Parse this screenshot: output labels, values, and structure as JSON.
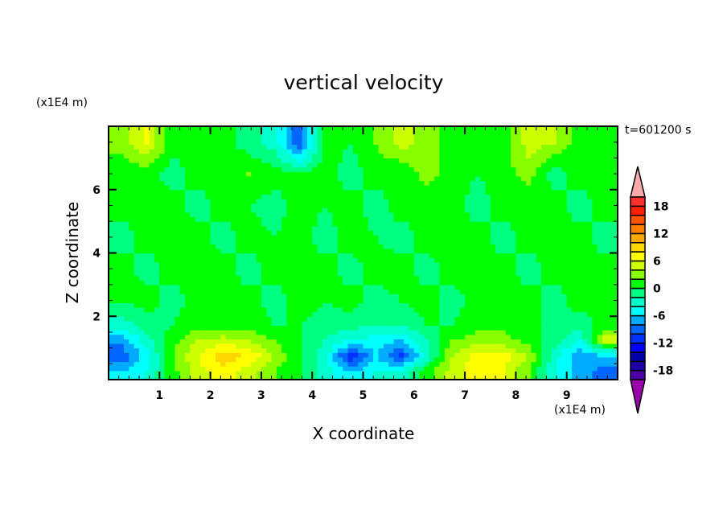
{
  "chart_data": {
    "type": "heatmap",
    "title": "vertical velocity",
    "xlabel": "X coordinate",
    "ylabel": "Z coordinate",
    "x_unit": "(x1E4 m)",
    "y_unit": "(x1E4 m)",
    "annotation": "t=601200 s",
    "xlim": [
      0,
      10
    ],
    "ylim": [
      0,
      8
    ],
    "x_ticks": [
      "1",
      "2",
      "3",
      "4",
      "5",
      "6",
      "7",
      "8",
      "9"
    ],
    "y_ticks": [
      "2",
      "4",
      "6"
    ],
    "x": [
      0.25,
      0.75,
      1.25,
      1.75,
      2.25,
      2.75,
      3.25,
      3.75,
      4.25,
      4.75,
      5.25,
      5.75,
      6.25,
      6.75,
      7.25,
      7.75,
      8.25,
      8.75,
      9.25,
      9.75
    ],
    "z": [
      0.25,
      0.75,
      1.25,
      1.75,
      2.5,
      3.5,
      4.5,
      5.5,
      6.5,
      7.5
    ],
    "values": [
      [
        -6,
        -4,
        1,
        5,
        7,
        5,
        2,
        0,
        -3,
        -6,
        -4,
        -3,
        1,
        5,
        7,
        6,
        2,
        -4,
        -7,
        -9
      ],
      [
        -10,
        -5,
        2,
        6,
        9,
        8,
        4,
        0,
        -3,
        -12,
        -6,
        -11,
        -3,
        4,
        7,
        7,
        4,
        -3,
        -8,
        -6
      ],
      [
        -7,
        -3,
        1,
        4,
        5,
        4,
        2,
        0,
        -2,
        -4,
        -5,
        -6,
        -2,
        2,
        3,
        3,
        1,
        -1,
        -4,
        5
      ],
      [
        -3,
        -1,
        0,
        1,
        1,
        1,
        0,
        0,
        -1,
        -1,
        -2,
        -2,
        0,
        0,
        1,
        1,
        0,
        0,
        -1,
        1
      ],
      [
        0,
        1,
        -1,
        1,
        0,
        1,
        -1,
        1,
        0,
        1,
        -1,
        0,
        1,
        -1,
        1,
        0,
        1,
        -1,
        1,
        0
      ],
      [
        1,
        -1,
        1,
        0,
        1,
        -1,
        1,
        0,
        1,
        -1,
        1,
        1,
        -1,
        1,
        0,
        1,
        -1,
        1,
        0,
        1
      ],
      [
        -1,
        1,
        0,
        1,
        -1,
        1,
        0,
        1,
        -1,
        1,
        0,
        -1,
        1,
        0,
        1,
        -1,
        1,
        0,
        1,
        -1
      ],
      [
        1,
        0,
        1,
        -1,
        1,
        0,
        -1,
        1,
        0,
        1,
        -1,
        1,
        0,
        1,
        -1,
        1,
        0,
        1,
        -1,
        1
      ],
      [
        0,
        1,
        -1,
        1,
        0,
        2,
        1,
        0,
        1,
        -1,
        1,
        0,
        3,
        1,
        0,
        1,
        3,
        -1,
        1,
        0
      ],
      [
        3,
        6,
        1,
        0,
        1,
        -1,
        -3,
        -10,
        1,
        0,
        2,
        5,
        3,
        1,
        0,
        1,
        5,
        4,
        1,
        0
      ]
    ],
    "colorbar": {
      "levels": [
        -20,
        -18,
        -16,
        -14,
        -12,
        -10,
        -8,
        -6,
        -4,
        -2,
        0,
        2,
        4,
        6,
        8,
        10,
        12,
        14,
        16,
        18,
        20
      ],
      "tick_labels": [
        "18",
        "12",
        "6",
        "0",
        "-6",
        "-12",
        "-18"
      ],
      "tick_values": [
        18,
        12,
        6,
        0,
        -6,
        -12,
        -18
      ],
      "colors": [
        "#4b00a8",
        "#1e00a8",
        "#0000a8",
        "#0000ff",
        "#0033ff",
        "#0066ff",
        "#00aaff",
        "#00ffff",
        "#00ffcc",
        "#00ff80",
        "#00ff00",
        "#88ff00",
        "#ccff00",
        "#ffff00",
        "#ffd700",
        "#ffaa00",
        "#ff8000",
        "#ff5500",
        "#ff2000",
        "#ff3030"
      ],
      "under_color": "#9900aa",
      "over_color": "#ffaaaa"
    }
  }
}
